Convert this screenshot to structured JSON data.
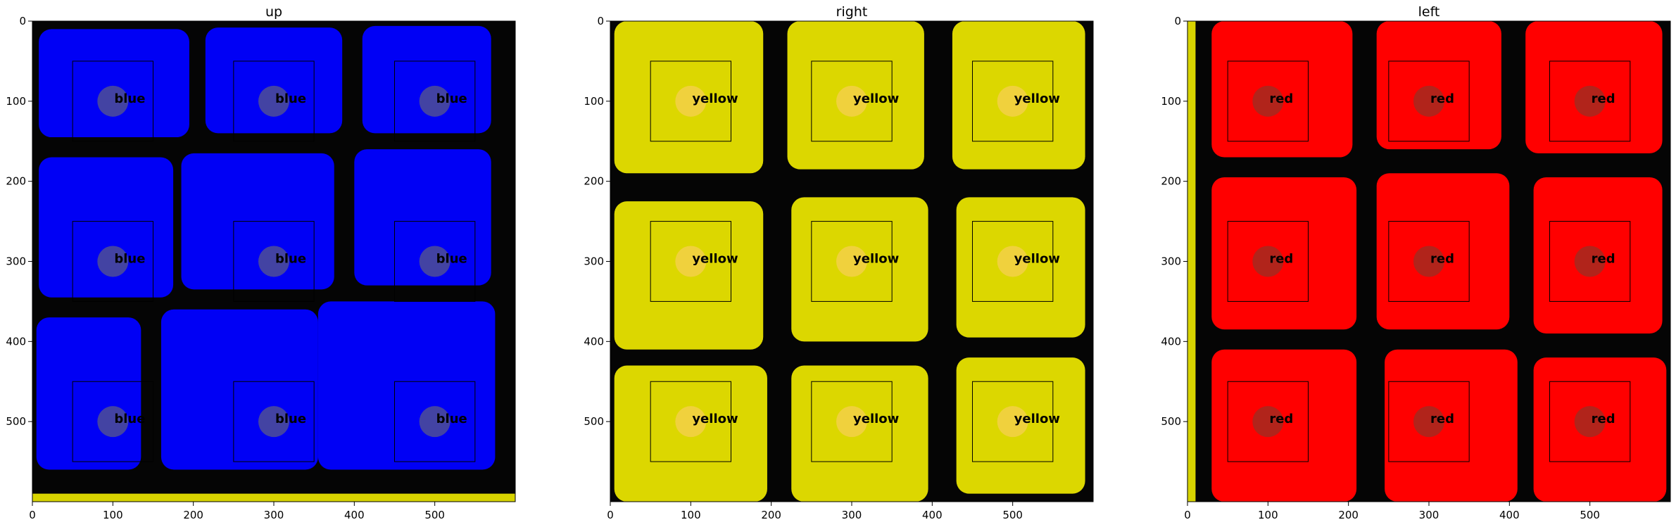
{
  "chart_data": [
    {
      "type": "heatmap",
      "title": "up",
      "face_color": "#0000f5",
      "annotation_label": "blue",
      "xlim": [
        0,
        600
      ],
      "ylim": [
        600,
        0
      ],
      "xticks": [
        0,
        100,
        200,
        300,
        400,
        500
      ],
      "yticks": [
        0,
        100,
        200,
        300,
        400,
        500
      ],
      "sample_points": [
        {
          "x": 100,
          "y": 100
        },
        {
          "x": 300,
          "y": 100
        },
        {
          "x": 500,
          "y": 100
        },
        {
          "x": 100,
          "y": 300
        },
        {
          "x": 300,
          "y": 300
        },
        {
          "x": 500,
          "y": 300
        },
        {
          "x": 100,
          "y": 500
        },
        {
          "x": 300,
          "y": 500
        },
        {
          "x": 500,
          "y": 500
        }
      ],
      "sample_box_size": 100
    },
    {
      "type": "heatmap",
      "title": "right",
      "face_color": "#dcd700",
      "annotation_label": "yellow",
      "xlim": [
        0,
        600
      ],
      "ylim": [
        600,
        0
      ],
      "xticks": [
        0,
        100,
        200,
        300,
        400,
        500
      ],
      "yticks": [
        0,
        100,
        200,
        300,
        400,
        500
      ],
      "sample_points": [
        {
          "x": 100,
          "y": 100
        },
        {
          "x": 300,
          "y": 100
        },
        {
          "x": 500,
          "y": 100
        },
        {
          "x": 100,
          "y": 300
        },
        {
          "x": 300,
          "y": 300
        },
        {
          "x": 500,
          "y": 300
        },
        {
          "x": 100,
          "y": 500
        },
        {
          "x": 300,
          "y": 500
        },
        {
          "x": 500,
          "y": 500
        }
      ],
      "sample_box_size": 100
    },
    {
      "type": "heatmap",
      "title": "left",
      "face_color": "#ff0000",
      "annotation_label": "red",
      "xlim": [
        0,
        600
      ],
      "ylim": [
        600,
        0
      ],
      "xticks": [
        0,
        100,
        200,
        300,
        400,
        500
      ],
      "yticks": [
        0,
        100,
        200,
        300,
        400,
        500
      ],
      "sample_points": [
        {
          "x": 100,
          "y": 100
        },
        {
          "x": 300,
          "y": 100
        },
        {
          "x": 500,
          "y": 100
        },
        {
          "x": 100,
          "y": 300
        },
        {
          "x": 300,
          "y": 300
        },
        {
          "x": 500,
          "y": 300
        },
        {
          "x": 100,
          "y": 500
        },
        {
          "x": 300,
          "y": 500
        },
        {
          "x": 500,
          "y": 500
        }
      ],
      "sample_box_size": 100
    }
  ]
}
